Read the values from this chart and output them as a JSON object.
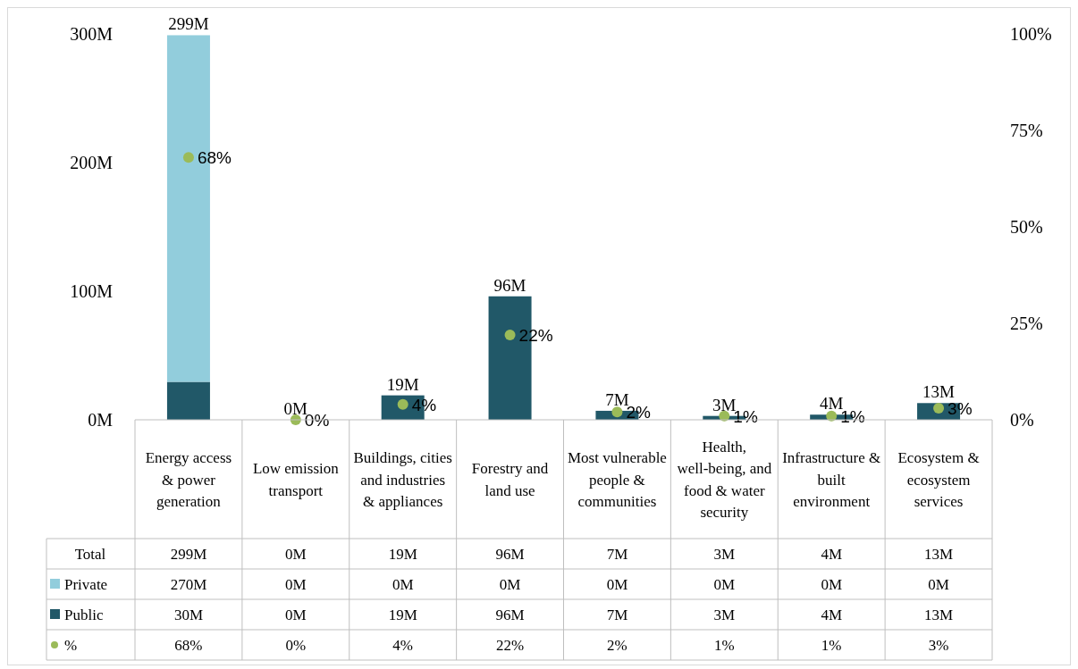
{
  "chart_data": {
    "type": "bar",
    "stacked": true,
    "categories": [
      "Energy access & power generation",
      "Low emission transport",
      "Buildings, cities and industries & appliances",
      "Forestry and land use",
      "Most vulnerable people & communities",
      "Health, well-being, and food & water security",
      "Infrastructure & built environment",
      "Ecosystem & ecosystem services"
    ],
    "series": [
      {
        "name": "Public",
        "color": "#215868",
        "values": [
          29.5,
          0,
          19,
          96,
          7,
          3,
          4,
          13
        ],
        "value_labels": [
          "30M",
          "0M",
          "19M",
          "96M",
          "7M",
          "3M",
          "4M",
          "13M"
        ]
      },
      {
        "name": "Private",
        "color": "#92cddc",
        "values": [
          269.5,
          0,
          0,
          0,
          0,
          0,
          0,
          0
        ],
        "value_labels": [
          "270M",
          "0M",
          "0M",
          "0M",
          "0M",
          "0M",
          "0M",
          "0M"
        ]
      },
      {
        "name": "%",
        "type": "scatter",
        "axis": "y2",
        "color": "#9bbb59",
        "values": [
          68,
          0,
          4,
          22,
          2,
          1,
          1,
          3
        ],
        "value_labels": [
          "68%",
          "0%",
          "4%",
          "22%",
          "2%",
          "1%",
          "1%",
          "3%"
        ]
      }
    ],
    "totals": [
      "299M",
      "0M",
      "19M",
      "96M",
      "7M",
      "3M",
      "4M",
      "13M"
    ],
    "annotations": [
      "Total"
    ],
    "ylim": [
      0,
      300
    ],
    "yticks": [
      {
        "value": 0,
        "label": "0M"
      },
      {
        "value": 100,
        "label": "100M"
      },
      {
        "value": 200,
        "label": "200M"
      },
      {
        "value": 300,
        "label": "300M"
      }
    ],
    "y2lim": [
      0,
      100
    ],
    "y2ticks": [
      {
        "value": 0,
        "label": "0%"
      },
      {
        "value": 25,
        "label": "25%"
      },
      {
        "value": 50,
        "label": "50%"
      },
      {
        "value": 75,
        "label": "75%"
      },
      {
        "value": 100,
        "label": "100%"
      }
    ],
    "marker": "circle",
    "legend": "bottom"
  }
}
